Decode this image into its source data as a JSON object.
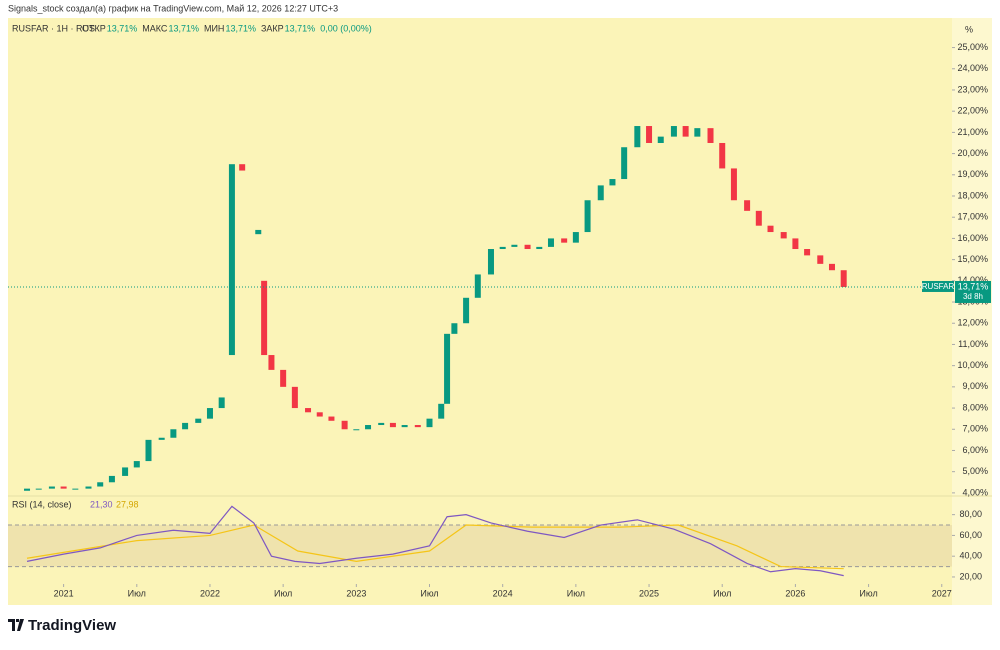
{
  "chart_data": {
    "type": "candlestick",
    "credit": "Signals_stock создал(а) график на TradingView.com, Май 12, 2026 12:27 UTC+3",
    "symbol": "RUSFAR · 1Н · RUS",
    "ohlc_header": [
      {
        "label": "ОТКР",
        "value": "13,71%"
      },
      {
        "label": "МАКС",
        "value": "13,71%"
      },
      {
        "label": "МИН",
        "value": "13,71%"
      },
      {
        "label": "ЗАКР",
        "value": "13,71%"
      }
    ],
    "change": "0,00 (0,00%)",
    "axis_unit": "%",
    "last_price": {
      "value": 13.71,
      "label": "13,71%",
      "name": "RUSFAR",
      "countdown": "3d 8h"
    },
    "up_color": "#089981",
    "down_color": "#f23645",
    "x": [
      2020.75,
      2020.83,
      2020.92,
      2021.0,
      2021.08,
      2021.17,
      2021.25,
      2021.33,
      2021.42,
      2021.5,
      2021.58,
      2021.67,
      2021.75,
      2021.83,
      2021.92,
      2022.0,
      2022.08,
      2022.15,
      2022.22,
      2022.33,
      2022.37,
      2022.42,
      2022.5,
      2022.58,
      2022.67,
      2022.75,
      2022.83,
      2022.92,
      2023.0,
      2023.08,
      2023.17,
      2023.25,
      2023.33,
      2023.42,
      2023.5,
      2023.58,
      2023.62,
      2023.67,
      2023.75,
      2023.83,
      2023.92,
      2024.0,
      2024.08,
      2024.17,
      2024.25,
      2024.33,
      2024.42,
      2024.5,
      2024.58,
      2024.67,
      2024.75,
      2024.83,
      2024.92,
      2025.0,
      2025.08,
      2025.17,
      2025.25,
      2025.33,
      2025.42,
      2025.5,
      2025.58,
      2025.67,
      2025.75,
      2025.83,
      2025.92,
      2026.0,
      2026.08,
      2026.17,
      2026.25,
      2026.33
    ],
    "open": [
      4.1,
      4.2,
      4.2,
      4.3,
      4.2,
      4.2,
      4.3,
      4.5,
      4.8,
      5.2,
      5.5,
      6.5,
      6.6,
      7.0,
      7.3,
      7.5,
      8.0,
      10.5,
      19.5,
      16.2,
      14.0,
      10.5,
      9.8,
      9.0,
      8.0,
      7.8,
      7.6,
      7.4,
      7.0,
      7.0,
      7.2,
      7.3,
      7.1,
      7.2,
      7.1,
      7.5,
      8.2,
      11.5,
      12.0,
      13.2,
      14.3,
      15.5,
      15.6,
      15.7,
      15.5,
      15.6,
      16.0,
      15.8,
      16.3,
      17.8,
      18.5,
      18.8,
      20.3,
      21.3,
      20.5,
      20.8,
      21.3,
      20.8,
      21.2,
      20.5,
      19.3,
      17.8,
      17.3,
      16.6,
      16.3,
      16.0,
      15.5,
      15.2,
      14.8,
      14.5
    ],
    "close": [
      4.2,
      4.2,
      4.3,
      4.2,
      4.2,
      4.3,
      4.5,
      4.8,
      5.2,
      5.5,
      6.5,
      6.6,
      7.0,
      7.3,
      7.5,
      8.0,
      8.5,
      19.5,
      19.2,
      16.4,
      10.5,
      9.8,
      9.0,
      8.0,
      7.8,
      7.6,
      7.4,
      7.0,
      7.0,
      7.2,
      7.3,
      7.1,
      7.2,
      7.1,
      7.5,
      8.2,
      11.5,
      12.0,
      13.2,
      14.3,
      15.5,
      15.6,
      15.7,
      15.5,
      15.6,
      16.0,
      15.8,
      16.3,
      17.8,
      18.5,
      18.8,
      20.3,
      21.3,
      20.5,
      20.8,
      21.3,
      20.8,
      21.2,
      20.5,
      19.3,
      17.8,
      17.3,
      16.6,
      16.3,
      16.0,
      15.5,
      15.2,
      14.8,
      14.5,
      13.71
    ],
    "ylim": [
      3.9,
      26.3
    ],
    "yticks": [
      {
        "value": 4,
        "label": "4,00%"
      },
      {
        "value": 5,
        "label": "5,00%"
      },
      {
        "value": 6,
        "label": "6,00%"
      },
      {
        "value": 7,
        "label": "7,00%"
      },
      {
        "value": 8,
        "label": "8,00%"
      },
      {
        "value": 9,
        "label": "9,00%"
      },
      {
        "value": 10,
        "label": "10,00%"
      },
      {
        "value": 11,
        "label": "11,00%"
      },
      {
        "value": 12,
        "label": "12,00%"
      },
      {
        "value": 13,
        "label": "13,00%"
      },
      {
        "value": 14,
        "label": "14,00%"
      },
      {
        "value": 15,
        "label": "15,00%"
      },
      {
        "value": 16,
        "label": "16,00%"
      },
      {
        "value": 17,
        "label": "17,00%"
      },
      {
        "value": 18,
        "label": "18,00%"
      },
      {
        "value": 19,
        "label": "19,00%"
      },
      {
        "value": 20,
        "label": "20,00%"
      },
      {
        "value": 21,
        "label": "21,00%"
      },
      {
        "value": 22,
        "label": "22,00%"
      },
      {
        "value": 23,
        "label": "23,00%"
      },
      {
        "value": 24,
        "label": "24,00%"
      },
      {
        "value": 25,
        "label": "25,00%"
      }
    ],
    "xlim": [
      2020.62,
      2027.07
    ],
    "xticks": [
      {
        "value": 2021,
        "label": "2021"
      },
      {
        "value": 2021.5,
        "label": "Июл"
      },
      {
        "value": 2022,
        "label": "2022"
      },
      {
        "value": 2022.5,
        "label": "Июл"
      },
      {
        "value": 2023,
        "label": "2023"
      },
      {
        "value": 2023.5,
        "label": "Июл"
      },
      {
        "value": 2024,
        "label": "2024"
      },
      {
        "value": 2024.5,
        "label": "Июл"
      },
      {
        "value": 2025,
        "label": "2025"
      },
      {
        "value": 2025.5,
        "label": "Июл"
      },
      {
        "value": 2026,
        "label": "2026"
      },
      {
        "value": 2026.5,
        "label": "Июл"
      },
      {
        "value": 2027,
        "label": "2027"
      }
    ],
    "rsi": {
      "title": "RSI (14, close)",
      "value_label": "21,30",
      "ma_label": "27,98",
      "color": "#7e57c2",
      "ma_color": "#f5c518",
      "x": [
        2020.75,
        2021.0,
        2021.25,
        2021.5,
        2021.75,
        2022.0,
        2022.15,
        2022.3,
        2022.42,
        2022.58,
        2022.75,
        2023.0,
        2023.25,
        2023.5,
        2023.62,
        2023.75,
        2023.92,
        2024.17,
        2024.42,
        2024.67,
        2024.92,
        2025.17,
        2025.42,
        2025.67,
        2025.83,
        2026.0,
        2026.17,
        2026.33
      ],
      "values": [
        35,
        42,
        48,
        60,
        65,
        62,
        88,
        72,
        40,
        35,
        33,
        38,
        42,
        50,
        78,
        80,
        72,
        64,
        58,
        70,
        75,
        66,
        52,
        33,
        25,
        28,
        26,
        21.3
      ],
      "ma_x": [
        2020.75,
        2021.5,
        2022.0,
        2022.3,
        2022.6,
        2023.0,
        2023.5,
        2023.75,
        2024.2,
        2024.8,
        2025.2,
        2025.6,
        2025.9,
        2026.33
      ],
      "ma_values": [
        38,
        55,
        60,
        70,
        45,
        35,
        45,
        70,
        68,
        68,
        70,
        50,
        30,
        27.98
      ],
      "ylim": [
        19,
        97
      ],
      "band": [
        30,
        70
      ],
      "yticks": [
        {
          "value": 20,
          "label": "20,00"
        },
        {
          "value": 40,
          "label": "40,00"
        },
        {
          "value": 60,
          "label": "60,00"
        },
        {
          "value": 80,
          "label": "80,00"
        }
      ]
    },
    "logo": "TradingView"
  }
}
